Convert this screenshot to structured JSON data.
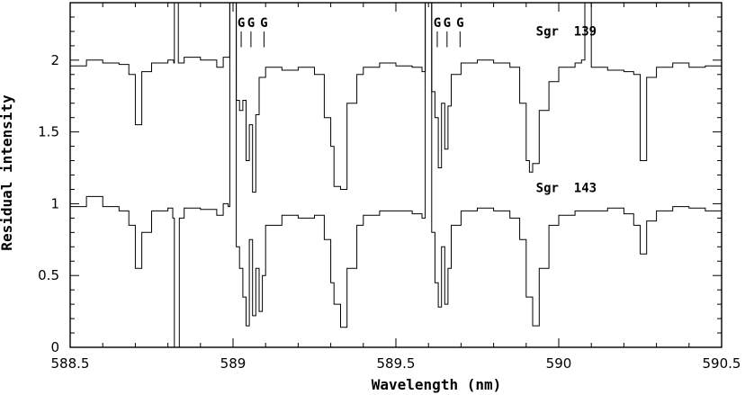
{
  "chart_data": {
    "type": "line",
    "xlabel": "Wavelength (nm)",
    "ylabel": "Residual intensity",
    "xlim": [
      588.5,
      590.5
    ],
    "ylim": [
      0,
      2.4
    ],
    "xticks": [
      588.5,
      589,
      589.5,
      590,
      590.5
    ],
    "xtick_labels": [
      "588.5",
      "589",
      "589.5",
      "590",
      "590.5"
    ],
    "yticks": [
      0,
      0.5,
      1,
      1.5,
      2
    ],
    "ytick_labels": [
      "0",
      "0.5",
      "1",
      "1.5",
      "2"
    ],
    "grid": false,
    "series": [
      {
        "name": "Sgr 139",
        "color": "#000000",
        "x": [
          588.5,
          588.55,
          588.6,
          588.65,
          588.68,
          588.7,
          588.72,
          588.75,
          588.8,
          588.818,
          588.82,
          588.822,
          588.828,
          588.83,
          588.832,
          588.85,
          588.9,
          588.95,
          588.97,
          588.985,
          588.99,
          588.995,
          589.0,
          589.01,
          589.02,
          589.03,
          589.04,
          589.05,
          589.06,
          589.07,
          589.08,
          589.1,
          589.15,
          589.2,
          589.25,
          589.28,
          589.3,
          589.31,
          589.33,
          589.35,
          589.38,
          589.4,
          589.45,
          589.5,
          589.55,
          589.58,
          589.59,
          589.595,
          589.6,
          589.61,
          589.62,
          589.63,
          589.64,
          589.65,
          589.66,
          589.67,
          589.7,
          589.75,
          589.8,
          589.85,
          589.88,
          589.9,
          589.91,
          589.92,
          589.94,
          589.97,
          590.0,
          590.05,
          590.07,
          590.08,
          590.085,
          590.09,
          590.1,
          590.15,
          590.2,
          590.23,
          590.25,
          590.27,
          590.3,
          590.35,
          590.4,
          590.45,
          590.5
        ],
        "y": [
          1.96,
          2.0,
          1.98,
          1.97,
          1.9,
          1.55,
          1.92,
          1.98,
          2.0,
          1.98,
          2.4,
          2.4,
          2.4,
          2.4,
          1.98,
          2.02,
          2.0,
          1.95,
          2.02,
          2.02,
          2.4,
          2.4,
          2.4,
          1.72,
          1.65,
          1.72,
          1.3,
          1.55,
          1.08,
          1.62,
          1.88,
          1.95,
          1.93,
          1.95,
          1.9,
          1.6,
          1.4,
          1.12,
          1.1,
          1.7,
          1.9,
          1.95,
          1.98,
          1.96,
          1.95,
          1.92,
          2.4,
          2.4,
          2.4,
          1.78,
          1.6,
          1.25,
          1.7,
          1.38,
          1.68,
          1.9,
          1.98,
          2.0,
          1.98,
          1.95,
          1.7,
          1.3,
          1.22,
          1.28,
          1.65,
          1.85,
          1.95,
          1.98,
          2.0,
          2.4,
          2.4,
          2.4,
          1.95,
          1.93,
          1.92,
          1.9,
          1.3,
          1.88,
          1.95,
          1.98,
          1.95,
          1.96,
          1.95
        ]
      },
      {
        "name": "Sgr 143",
        "color": "#000000",
        "x": [
          588.5,
          588.55,
          588.6,
          588.65,
          588.68,
          588.7,
          588.72,
          588.75,
          588.8,
          588.815,
          588.82,
          588.823,
          588.827,
          588.83,
          588.835,
          588.85,
          588.9,
          588.95,
          588.97,
          588.985,
          588.99,
          588.995,
          589.0,
          589.01,
          589.02,
          589.03,
          589.04,
          589.05,
          589.06,
          589.07,
          589.08,
          589.09,
          589.1,
          589.15,
          589.2,
          589.25,
          589.28,
          589.3,
          589.31,
          589.33,
          589.35,
          589.38,
          589.4,
          589.45,
          589.5,
          589.55,
          589.58,
          589.59,
          589.595,
          589.6,
          589.61,
          589.62,
          589.63,
          589.64,
          589.65,
          589.66,
          589.67,
          589.7,
          589.75,
          589.8,
          589.85,
          589.88,
          589.9,
          589.92,
          589.94,
          589.97,
          590.0,
          590.05,
          590.1,
          590.15,
          590.2,
          590.23,
          590.25,
          590.27,
          590.3,
          590.35,
          590.4,
          590.45,
          590.5
        ],
        "y": [
          0.98,
          1.05,
          0.98,
          0.95,
          0.85,
          0.55,
          0.8,
          0.95,
          0.97,
          0.9,
          0.0,
          0.0,
          0.0,
          0.0,
          0.9,
          0.97,
          0.96,
          0.92,
          1.0,
          0.98,
          2.4,
          2.4,
          2.4,
          0.7,
          0.55,
          0.35,
          0.15,
          0.75,
          0.22,
          0.55,
          0.25,
          0.5,
          0.85,
          0.92,
          0.9,
          0.92,
          0.75,
          0.45,
          0.3,
          0.14,
          0.55,
          0.85,
          0.92,
          0.95,
          0.95,
          0.93,
          0.9,
          2.4,
          2.4,
          2.4,
          0.8,
          0.45,
          0.28,
          0.7,
          0.3,
          0.55,
          0.85,
          0.95,
          0.97,
          0.95,
          0.9,
          0.75,
          0.35,
          0.15,
          0.55,
          0.85,
          0.92,
          0.95,
          0.95,
          0.97,
          0.93,
          0.85,
          0.65,
          0.88,
          0.95,
          0.98,
          0.97,
          0.95,
          0.9
        ]
      }
    ],
    "annotations": [
      {
        "text": "Sgr  139",
        "x": 589.93,
        "y": 2.17
      },
      {
        "text": "Sgr  143",
        "x": 589.93,
        "y": 1.08
      },
      {
        "text": "G",
        "x": 589.025,
        "y": 2.23
      },
      {
        "text": "G",
        "x": 589.055,
        "y": 2.23
      },
      {
        "text": "G",
        "x": 589.095,
        "y": 2.23
      },
      {
        "text": "G",
        "x": 589.627,
        "y": 2.23
      },
      {
        "text": "G",
        "x": 589.657,
        "y": 2.23
      },
      {
        "text": "G",
        "x": 589.697,
        "y": 2.23
      }
    ],
    "marker_ticks": [
      589.025,
      589.055,
      589.095,
      589.627,
      589.657,
      589.697
    ]
  }
}
